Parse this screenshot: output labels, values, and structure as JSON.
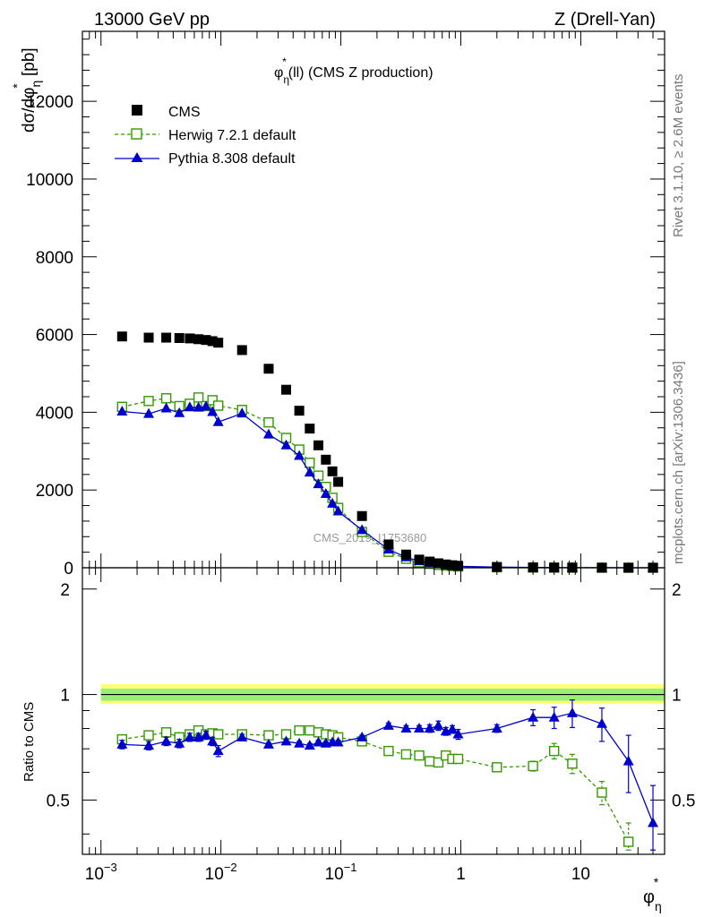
{
  "header": {
    "left": "13000 GeV pp",
    "right": "Z (Drell-Yan)"
  },
  "side_labels": {
    "rivet": "Rivet 3.1.10, ≥ 2.6M events",
    "mcplots": "mcplots.cern.ch [arXiv:1306.3436]"
  },
  "chart_data": [
    {
      "type": "scatter",
      "panel": "main",
      "title": "φ*η(ll) (CMS Z production)",
      "title_parts": {
        "phi": "φ",
        "star": "*",
        "eta": "η",
        "rest": "(ll) (CMS Z production)"
      },
      "watermark": "CMS_2019_I1753680",
      "ylabel": "dσ/dφ*η [pb]",
      "ylabel_parts": {
        "a": "dσ/dφ",
        "star": "*",
        "eta": "η",
        "b": " [pb]"
      },
      "x_scale": "log",
      "xlim": [
        0.0007,
        50
      ],
      "ylim": [
        0,
        13800
      ],
      "yticks": [
        0,
        2000,
        4000,
        6000,
        8000,
        10000,
        12000
      ],
      "legend_position": "top-left",
      "series": [
        {
          "name": "CMS",
          "color": "#000000",
          "marker": "filled-square",
          "x": [
            0.0015,
            0.0025,
            0.0035,
            0.0045,
            0.0055,
            0.0065,
            0.0075,
            0.0085,
            0.0095,
            0.015,
            0.025,
            0.035,
            0.045,
            0.055,
            0.065,
            0.075,
            0.085,
            0.095,
            0.15,
            0.25,
            0.35,
            0.45,
            0.55,
            0.65,
            0.75,
            0.85,
            0.95,
            2,
            4,
            6,
            8.5,
            15,
            25,
            40
          ],
          "y": [
            5950,
            5920,
            5920,
            5910,
            5900,
            5880,
            5860,
            5830,
            5790,
            5600,
            5120,
            4580,
            4040,
            3580,
            3150,
            2780,
            2480,
            2210,
            1330,
            600,
            340,
            210,
            160,
            115,
            85,
            65,
            50,
            20,
            8,
            5,
            3,
            1.5,
            0.8,
            0.3
          ]
        },
        {
          "name": "Herwig 7.2.1 default",
          "color": "#339900",
          "marker": "open-square",
          "line": "dashed",
          "x": [
            0.0015,
            0.0025,
            0.0035,
            0.0045,
            0.0055,
            0.0065,
            0.0075,
            0.0085,
            0.0095,
            0.015,
            0.025,
            0.035,
            0.045,
            0.055,
            0.065,
            0.075,
            0.085,
            0.095,
            0.15,
            0.25,
            0.35,
            0.45,
            0.55,
            0.65,
            0.75,
            0.85,
            0.95,
            2,
            4,
            6,
            8.5,
            15,
            25,
            40
          ],
          "y": [
            4140,
            4290,
            4360,
            4160,
            4220,
            4380,
            4160,
            4310,
            4170,
            4060,
            3740,
            3340,
            3040,
            2700,
            2370,
            2080,
            1800,
            1540,
            920,
            410,
            230,
            140,
            100,
            74,
            56,
            43,
            33,
            12.5,
            5,
            3.5,
            1.9,
            0.8,
            0.3,
            0.1
          ]
        },
        {
          "name": "Pythia 8.308 default",
          "color": "#0000cc",
          "marker": "filled-triangle",
          "line": "solid",
          "x": [
            0.0015,
            0.0025,
            0.0035,
            0.0045,
            0.0055,
            0.0065,
            0.0075,
            0.0085,
            0.0095,
            0.015,
            0.025,
            0.035,
            0.045,
            0.055,
            0.065,
            0.075,
            0.085,
            0.095,
            0.15,
            0.25,
            0.35,
            0.45,
            0.55,
            0.65,
            0.75,
            0.85,
            0.95,
            2,
            4,
            6,
            8.5,
            15,
            25,
            40
          ],
          "y": [
            4020,
            3960,
            4100,
            3980,
            4130,
            4120,
            4150,
            4010,
            3750,
            3970,
            3430,
            3150,
            2880,
            2450,
            2150,
            1900,
            1650,
            1450,
            970,
            470,
            270,
            170,
            125,
            93,
            66,
            53,
            38,
            16,
            6.9,
            4.3,
            2.7,
            1.2,
            0.5,
            0.1
          ]
        }
      ]
    },
    {
      "type": "line",
      "panel": "ratio",
      "ylabel": "Ratio to CMS",
      "xlabel": "φ*η",
      "xlabel_parts": {
        "phi": "φ",
        "star": "*",
        "eta": "η"
      },
      "x_scale": "log",
      "xlim": [
        0.0007,
        50
      ],
      "ylim": [
        0.35,
        2.3
      ],
      "y_scale": "log",
      "yticks": [
        0.5,
        1,
        2
      ],
      "xticks": [
        {
          "value": 0.001,
          "base": "10",
          "exp": "−3"
        },
        {
          "value": 0.01,
          "base": "10",
          "exp": "−2"
        },
        {
          "value": 0.1,
          "base": "10",
          "exp": "−1"
        },
        {
          "value": 1,
          "base": "1",
          "exp": ""
        },
        {
          "value": 10,
          "base": "10",
          "exp": ""
        }
      ],
      "uncertainty_band": {
        "x_range": [
          0.001,
          50
        ],
        "inner": [
          0.96,
          1.04
        ],
        "outer": [
          0.94,
          1.07
        ],
        "inner_color": "#99ee77",
        "outer_color": "#ffff77"
      },
      "series": [
        {
          "name": "Herwig 7.2.1 default",
          "color": "#339900",
          "x": [
            0.0015,
            0.0025,
            0.0035,
            0.0045,
            0.0055,
            0.0065,
            0.0075,
            0.0085,
            0.0095,
            0.015,
            0.025,
            0.035,
            0.045,
            0.055,
            0.065,
            0.075,
            0.085,
            0.095,
            0.15,
            0.25,
            0.35,
            0.45,
            0.55,
            0.65,
            0.75,
            0.85,
            0.95,
            2,
            4,
            6,
            8.5,
            15,
            25
          ],
          "y": [
            0.745,
            0.765,
            0.78,
            0.755,
            0.77,
            0.79,
            0.77,
            0.775,
            0.77,
            0.77,
            0.765,
            0.77,
            0.79,
            0.79,
            0.78,
            0.77,
            0.765,
            0.755,
            0.735,
            0.69,
            0.675,
            0.67,
            0.645,
            0.64,
            0.67,
            0.655,
            0.655,
            0.62,
            0.625,
            0.69,
            0.635,
            0.525,
            0.38
          ],
          "err": [
            0,
            0,
            0,
            0,
            0,
            0,
            0,
            0,
            0,
            0,
            0,
            0,
            0,
            0,
            0,
            0,
            0,
            0,
            0,
            0,
            0,
            0,
            0,
            0,
            0,
            0,
            0,
            0,
            0.02,
            0.035,
            0.04,
            0.04,
            0.05
          ]
        },
        {
          "name": "Pythia 8.308 default",
          "color": "#0000cc",
          "x": [
            0.0015,
            0.0025,
            0.0035,
            0.0045,
            0.0055,
            0.0065,
            0.0075,
            0.0085,
            0.0095,
            0.015,
            0.025,
            0.035,
            0.045,
            0.055,
            0.065,
            0.075,
            0.085,
            0.095,
            0.15,
            0.25,
            0.35,
            0.45,
            0.55,
            0.65,
            0.75,
            0.85,
            0.95,
            2,
            4,
            6,
            8.5,
            15,
            25,
            40
          ],
          "y": [
            0.72,
            0.715,
            0.735,
            0.725,
            0.755,
            0.755,
            0.765,
            0.735,
            0.69,
            0.755,
            0.72,
            0.735,
            0.725,
            0.715,
            0.73,
            0.725,
            0.73,
            0.73,
            0.755,
            0.815,
            0.8,
            0.8,
            0.8,
            0.815,
            0.785,
            0.795,
            0.77,
            0.8,
            0.86,
            0.86,
            0.885,
            0.825,
            0.645,
            0.43
          ],
          "err": [
            0.02,
            0.02,
            0.02,
            0.02,
            0.02,
            0.02,
            0.02,
            0.02,
            0.025,
            0.015,
            0.01,
            0.01,
            0.01,
            0.01,
            0.01,
            0.01,
            0.01,
            0.01,
            0.01,
            0.015,
            0.015,
            0.015,
            0.02,
            0.025,
            0.02,
            0.02,
            0.025,
            0.02,
            0.045,
            0.06,
            0.08,
            0.09,
            0.12,
            0.12
          ]
        }
      ]
    }
  ]
}
